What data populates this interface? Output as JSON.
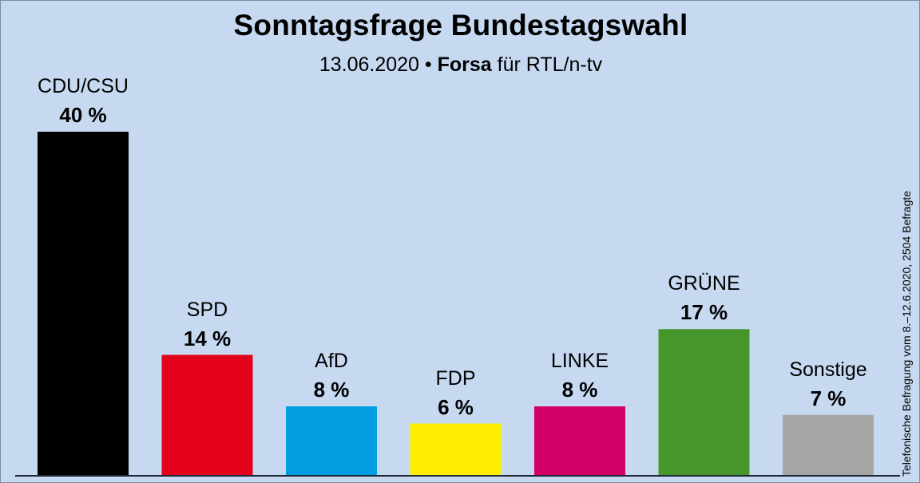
{
  "header": {
    "title": "Sonntagsfrage Bundestagswahl",
    "date": "13.06.2020",
    "separator": "•",
    "institute": "Forsa",
    "client": "für RTL/n-tv"
  },
  "side_note": "Telefonische Befragung vom 8.–12.6.2020, 2504 Befragte",
  "chart_data": {
    "type": "bar",
    "title": "Sonntagsfrage Bundestagswahl",
    "subtitle": "13.06.2020 • Forsa für RTL/n-tv",
    "categories": [
      "CDU/CSU",
      "SPD",
      "AfD",
      "FDP",
      "LINKE",
      "GRÜNE",
      "Sonstige"
    ],
    "values": [
      40,
      14,
      8,
      6,
      8,
      17,
      7
    ],
    "value_labels": [
      "40 %",
      "14 %",
      "8 %",
      "6 %",
      "8 %",
      "17 %",
      "7 %"
    ],
    "colors": [
      "#000000",
      "#e3001b",
      "#009ee0",
      "#ffed00",
      "#d4006a",
      "#46962b",
      "#a6a6a6"
    ],
    "unit": "%",
    "xlabel": "",
    "ylabel": "",
    "ylim": [
      0,
      40
    ],
    "grid": false,
    "legend": "none"
  }
}
